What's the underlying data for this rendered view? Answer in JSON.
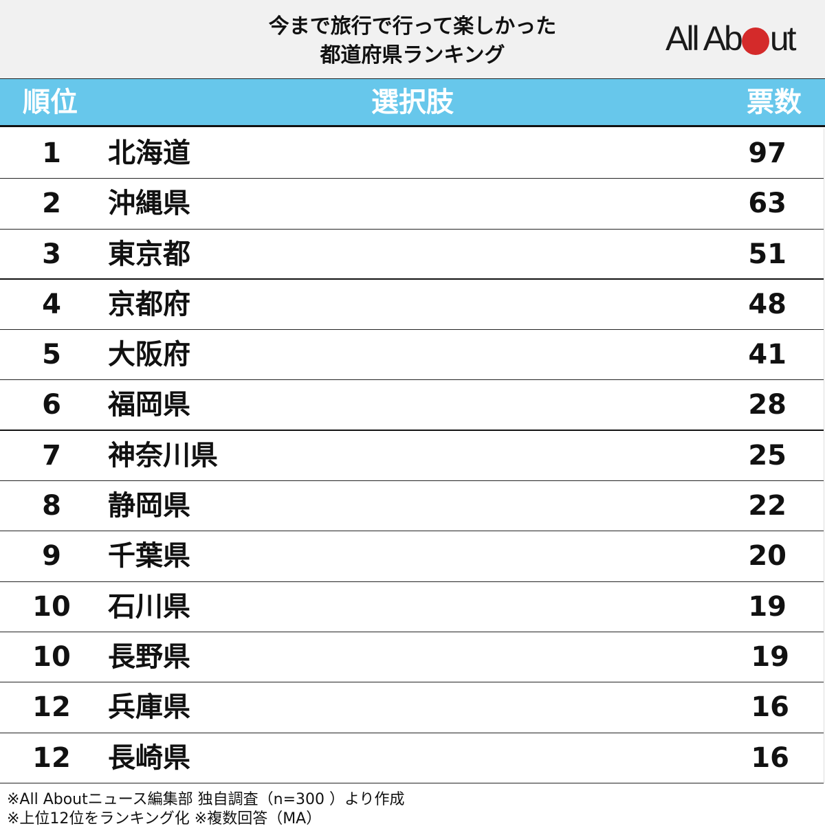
{
  "title": {
    "line1": "今まで旅行で行って楽しかった",
    "line2": "都道府県ランキング"
  },
  "logo": {
    "part1": "All Ab",
    "part2": "ut",
    "dot_color": "#d42a2a"
  },
  "header": {
    "rank": "順位",
    "choice": "選択肢",
    "votes": "票数",
    "bg_color": "#67c7eb"
  },
  "rows": [
    {
      "rank": "1",
      "name": "北海道",
      "votes": "97"
    },
    {
      "rank": "2",
      "name": "沖縄県",
      "votes": "63"
    },
    {
      "rank": "3",
      "name": "東京都",
      "votes": "51"
    },
    {
      "rank": "4",
      "name": "京都府",
      "votes": "48"
    },
    {
      "rank": "5",
      "name": "大阪府",
      "votes": "41"
    },
    {
      "rank": "6",
      "name": "福岡県",
      "votes": "28"
    },
    {
      "rank": "7",
      "name": "神奈川県",
      "votes": "25"
    },
    {
      "rank": "8",
      "name": "静岡県",
      "votes": "22"
    },
    {
      "rank": "9",
      "name": "千葉県",
      "votes": "20"
    },
    {
      "rank": "10",
      "name": "石川県",
      "votes": "19"
    },
    {
      "rank": "10",
      "name": "長野県",
      "votes": "19"
    },
    {
      "rank": "12",
      "name": "兵庫県",
      "votes": "16"
    },
    {
      "rank": "12",
      "name": "長崎県",
      "votes": "16"
    }
  ],
  "footer": {
    "line1": "※All Aboutニュース編集部 独自調査（n=300 ）より作成",
    "line2": "※上位12位をランキング化 ※複数回答（MA）"
  },
  "chart_data": {
    "type": "table",
    "title": "今まで旅行で行って楽しかった都道府県ランキング",
    "columns": [
      "順位",
      "選択肢",
      "票数"
    ],
    "categories": [
      "北海道",
      "沖縄県",
      "東京都",
      "京都府",
      "大阪府",
      "福岡県",
      "神奈川県",
      "静岡県",
      "千葉県",
      "石川県",
      "長野県",
      "兵庫県",
      "長崎県"
    ],
    "ranks": [
      1,
      2,
      3,
      4,
      5,
      6,
      7,
      8,
      9,
      10,
      10,
      12,
      12
    ],
    "values": [
      97,
      63,
      51,
      48,
      41,
      28,
      25,
      22,
      20,
      19,
      19,
      16,
      16
    ],
    "notes": [
      "※All Aboutニュース編集部 独自調査（n=300 ）より作成",
      "※上位12位をランキング化 ※複数回答（MA）"
    ]
  }
}
